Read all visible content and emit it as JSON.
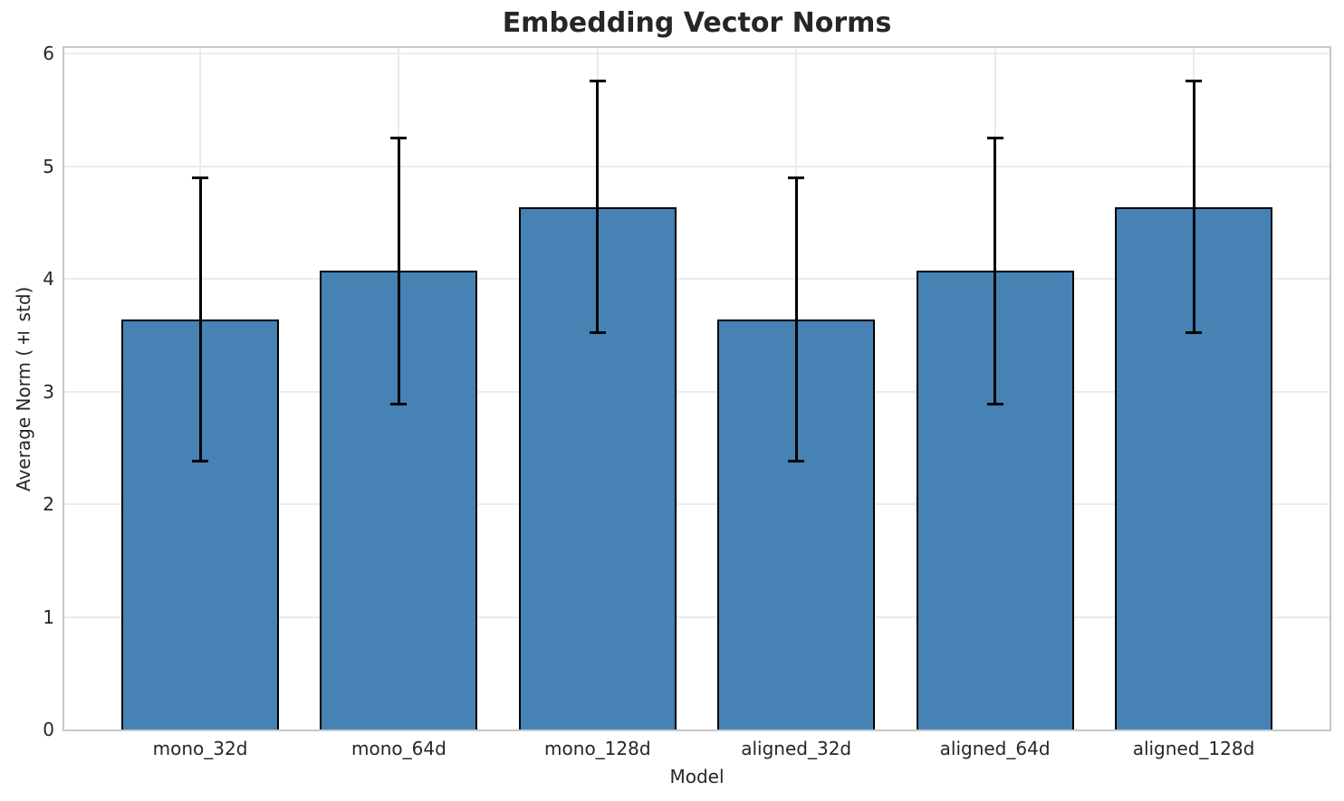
{
  "chart_data": {
    "type": "bar",
    "title": "Embedding Vector Norms",
    "xlabel": "Model",
    "ylabel": "Average Norm (± std)",
    "categories": [
      "mono_32d",
      "mono_64d",
      "mono_128d",
      "aligned_32d",
      "aligned_64d",
      "aligned_128d"
    ],
    "values": [
      3.64,
      4.07,
      4.64,
      3.64,
      4.07,
      4.64
    ],
    "errors": [
      1.26,
      1.18,
      1.12,
      1.26,
      1.18,
      1.12
    ],
    "error_tops": [
      4.9,
      5.25,
      5.76,
      4.9,
      5.25,
      5.76
    ],
    "error_bottoms": [
      2.38,
      2.89,
      3.52,
      2.38,
      2.89,
      3.52
    ],
    "yticks": [
      0,
      1,
      2,
      3,
      4,
      5,
      6
    ],
    "ylim": [
      0,
      6.05
    ],
    "grid": true,
    "legend": false,
    "colors": {
      "bar_fill": "#4682b4",
      "bar_edge": "#000000",
      "error_bar": "#000000",
      "gridline": "#ebebeb",
      "spine": "#c8c8c8",
      "text": "#262626",
      "background": "#ffffff"
    }
  }
}
